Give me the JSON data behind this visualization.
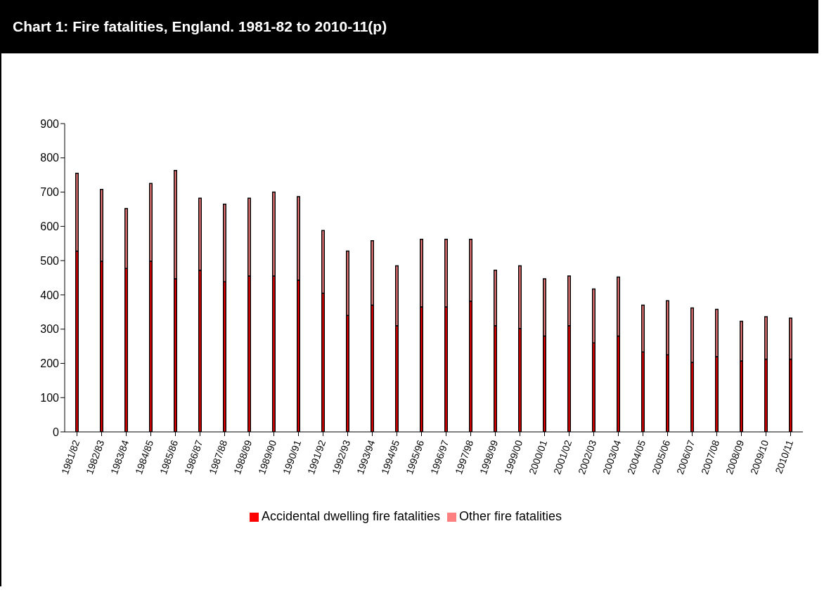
{
  "chart_data": {
    "type": "bar",
    "title": "Chart 1: Fire fatalities, England. 1981-82 to 2010-11(p)",
    "stacked": true,
    "legend": "bottom",
    "grid": false,
    "categories": [
      "1981/82",
      "1982/83",
      "1983/84",
      "1984/85",
      "1985/86",
      "1986/87",
      "1987/88",
      "1988/89",
      "1989/90",
      "1990/91",
      "1991/92",
      "1992/93",
      "1993/94",
      "1994/95",
      "1995/96",
      "1996/97",
      "1997/98",
      "1998/99",
      "1999/00",
      "2000/01",
      "2001/02",
      "2002/03",
      "2003/04",
      "2004/05",
      "2005/06",
      "2006/07",
      "2007/08",
      "2008/09",
      "2009/10",
      "2010/11"
    ],
    "ylim": [
      0,
      900
    ],
    "yticks": [
      0,
      100,
      200,
      300,
      400,
      500,
      600,
      700,
      800,
      900
    ],
    "series": [
      {
        "name": "Accidental dwelling fire fatalities",
        "color": "#ff0000",
        "values": [
          528,
          498,
          477,
          498,
          447,
          472,
          438,
          455,
          455,
          443,
          405,
          340,
          370,
          310,
          365,
          365,
          382,
          310,
          302,
          280,
          310,
          260,
          280,
          233,
          225,
          203,
          220,
          207,
          212,
          212
        ]
      },
      {
        "name": "Other fire fatalities",
        "color": "#ff8080",
        "values": [
          227,
          210,
          175,
          227,
          316,
          210,
          227,
          227,
          245,
          244,
          183,
          188,
          188,
          175,
          197,
          197,
          180,
          162,
          183,
          167,
          145,
          157,
          172,
          137,
          158,
          159,
          138,
          116,
          124,
          120
        ]
      }
    ]
  }
}
